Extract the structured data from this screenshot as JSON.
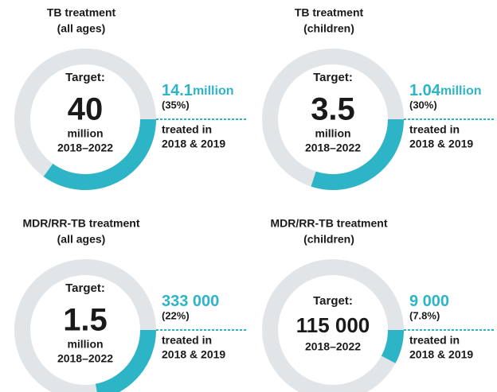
{
  "chart_data": [
    {
      "type": "donut",
      "title": [
        "TB treatment",
        "(all ages)"
      ],
      "target_label": "Target:",
      "target_value": "40",
      "target_unit": "million",
      "target_period": "2018–2022",
      "achieved": "14.1",
      "achieved_unit": "million",
      "values": [
        35
      ],
      "value_labels": [
        "(35%)"
      ],
      "caption": [
        "treated in",
        "2018 & 2019"
      ],
      "color": "#2db4c6",
      "track_color": "#e1e5e8"
    },
    {
      "type": "donut",
      "title": [
        "TB treatment",
        "(children)"
      ],
      "target_label": "Target:",
      "target_value": "3.5",
      "target_unit": "million",
      "target_period": "2018–2022",
      "achieved": "1.04",
      "achieved_unit": "million",
      "values": [
        30
      ],
      "value_labels": [
        "(30%)"
      ],
      "caption": [
        "treated in",
        "2018 & 2019"
      ],
      "color": "#2db4c6",
      "track_color": "#e1e5e8"
    },
    {
      "type": "donut",
      "title": [
        "MDR/RR-TB treatment",
        "(all ages)"
      ],
      "target_label": "Target:",
      "target_value": "1.5",
      "target_unit": "million",
      "target_period": "2018–2022",
      "achieved": "333 000",
      "values": [
        22
      ],
      "value_labels": [
        "(22%)"
      ],
      "caption": [
        "treated in",
        "2018 & 2019"
      ],
      "color": "#2db4c6",
      "track_color": "#e1e5e8"
    },
    {
      "type": "donut",
      "title": [
        "MDR/RR-TB treatment",
        "(children)"
      ],
      "target_label": "Target:",
      "target_value": "115 000",
      "target_period": "2018–2022",
      "achieved": "9 000",
      "values": [
        7.8
      ],
      "value_labels": [
        "(7.8%)"
      ],
      "caption": [
        "treated in",
        "2018 & 2019"
      ],
      "color": "#2db4c6",
      "track_color": "#e1e5e8"
    }
  ]
}
